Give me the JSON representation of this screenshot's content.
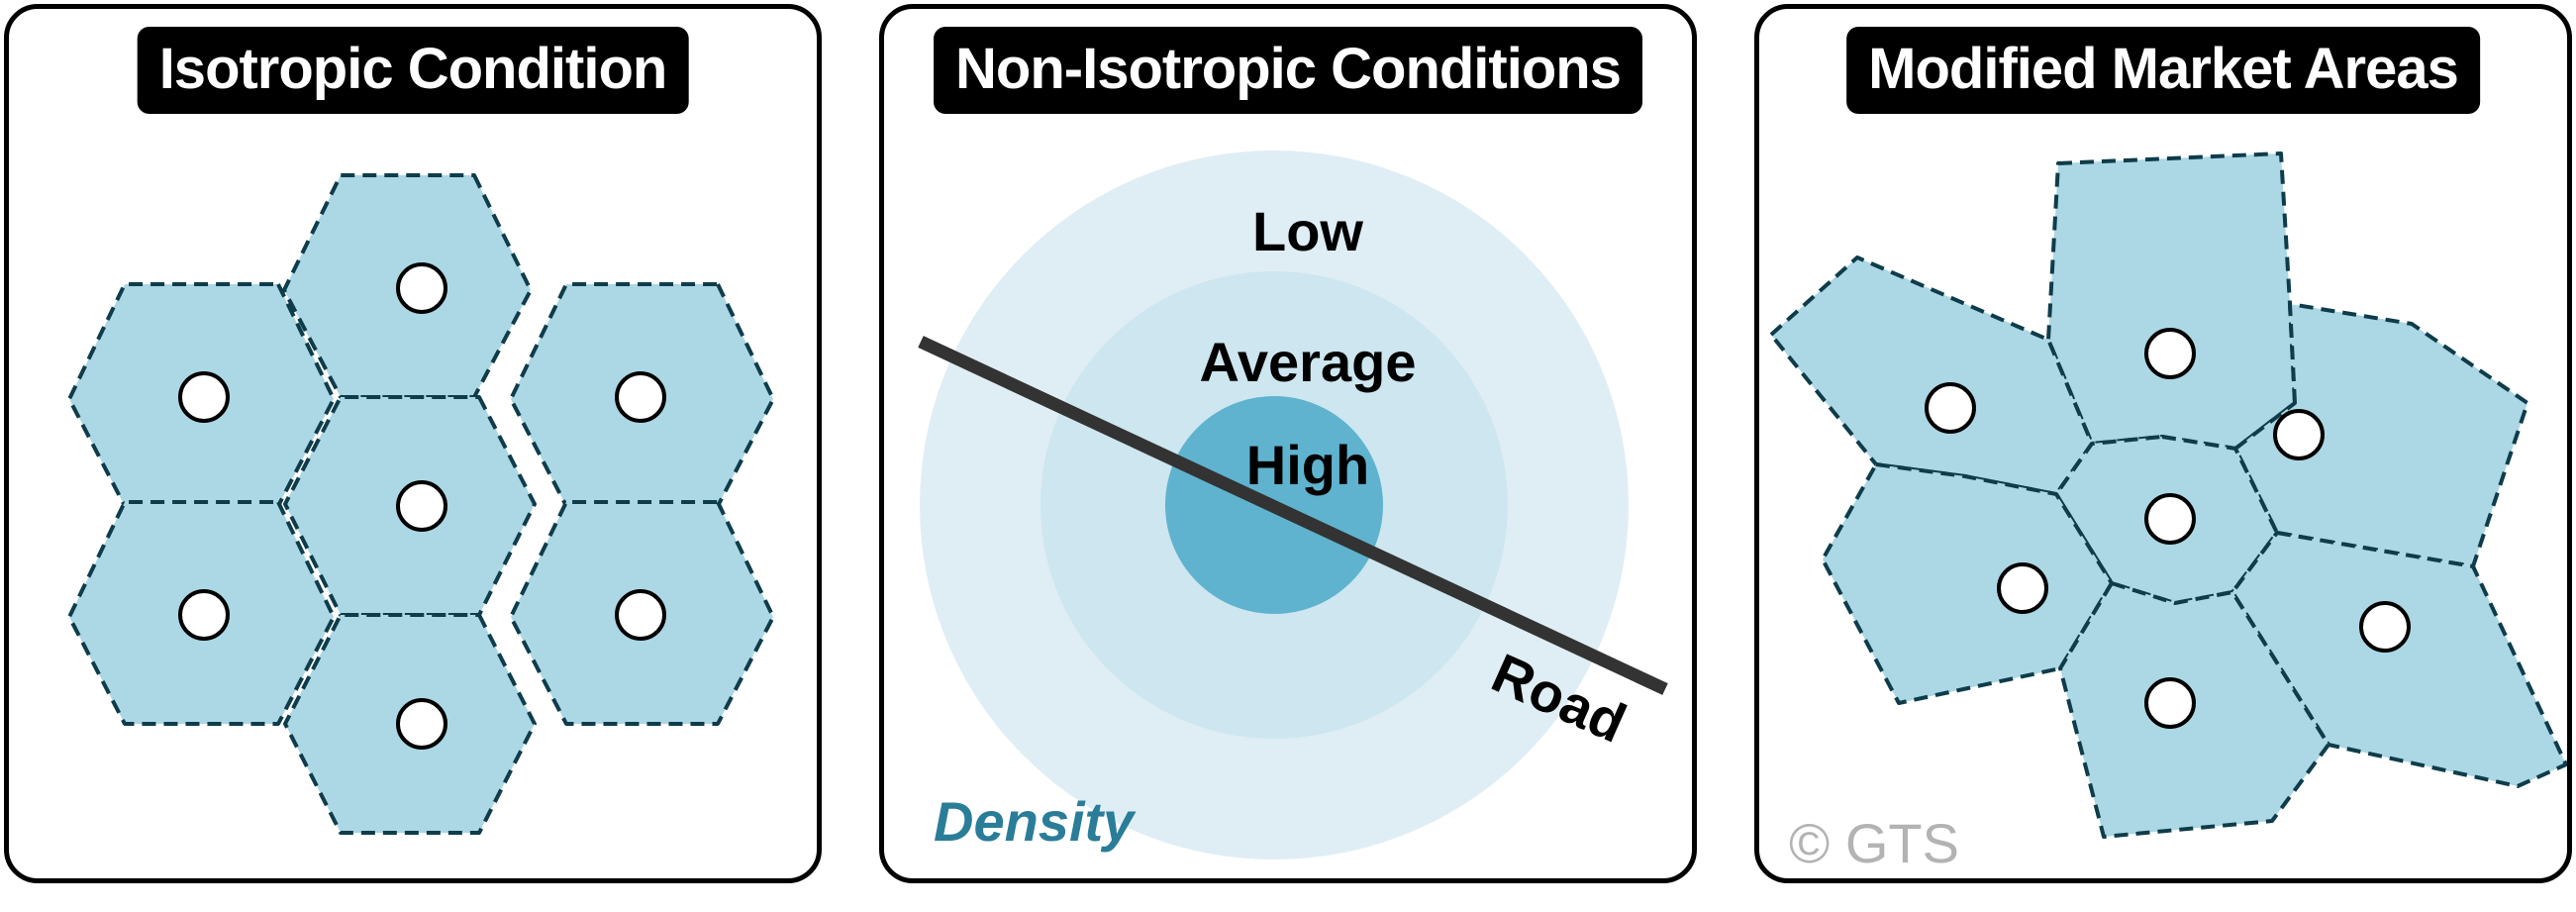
{
  "panels": [
    {
      "title": "Isotropic Condition"
    },
    {
      "title": "Non-Isotropic Conditions"
    },
    {
      "title": "Modified Market Areas"
    }
  ],
  "density_zones": {
    "low": "Low",
    "average": "Average",
    "high": "High",
    "caption": "Density",
    "colors": {
      "low": "#dfeef4",
      "average": "#cde6ef",
      "high": "#5fb3cf"
    }
  },
  "road": {
    "label": "Road",
    "color": "#333333"
  },
  "copyright": "© GTS",
  "colors": {
    "cell_fill": "#acd7e4",
    "cell_stroke": "#0e3c4a",
    "caption": "#2a7d99"
  }
}
